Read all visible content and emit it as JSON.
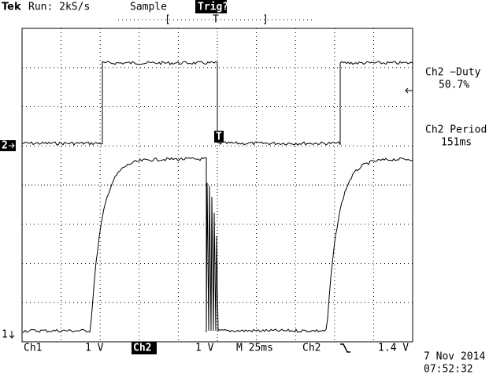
{
  "header": {
    "brand": "Tek",
    "run": "Run: 2kS/s",
    "mode": "Sample",
    "trigger_status": "Trig?",
    "trigger_window": {
      "left": "[",
      "marker": "T",
      "right": "]"
    }
  },
  "trigger_marker": "T",
  "channel_markers": {
    "ch2": "2",
    "ch1": "1"
  },
  "measurements": [
    {
      "label": "Ch2 −Duty",
      "value": "50.7%"
    },
    {
      "label": "Ch2 Period",
      "value": "151ms"
    }
  ],
  "footer": {
    "ch1": "Ch1",
    "ch1_scale": "1 V",
    "ch2": "Ch2",
    "ch2_scale": "1 V",
    "timebase": "M 25ms",
    "trigger_source": "Ch2",
    "trigger_level": "1.4 V",
    "date": "7 Nov 2014",
    "time": "07:52:32"
  }
}
